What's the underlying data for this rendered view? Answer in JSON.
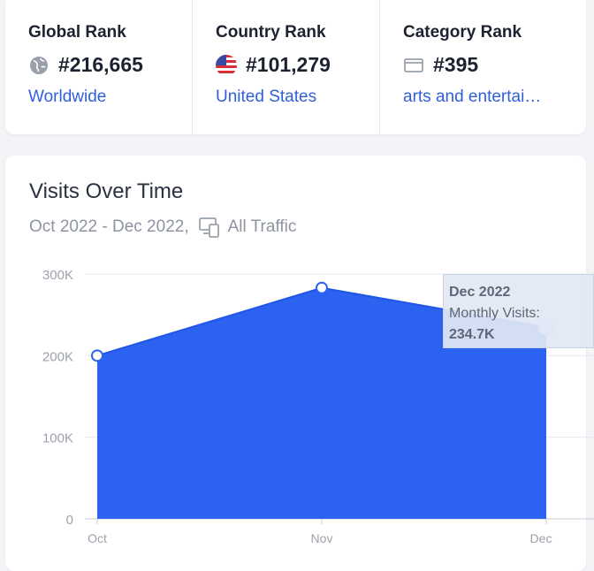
{
  "ranks": {
    "global": {
      "title": "Global Rank",
      "value": "#216,665",
      "link": "Worldwide",
      "icon": "globe-icon"
    },
    "country": {
      "title": "Country Rank",
      "value": "#101,279",
      "link": "United States",
      "icon": "us-flag-icon"
    },
    "category": {
      "title": "Category Rank",
      "value": "#395",
      "link": "arts and entertai…",
      "icon": "category-icon"
    }
  },
  "visits": {
    "title": "Visits Over Time",
    "date_range": "Oct 2022 - Dec 2022,",
    "traffic": "All Traffic",
    "traffic_icon": "devices-icon"
  },
  "tooltip": {
    "date": "Dec 2022",
    "label": "Monthly Visits:",
    "value": "234.7K"
  },
  "colors": {
    "accent": "#2b62f0",
    "link": "#2f5fdb",
    "text": "#1c2230",
    "muted": "#8d93a0"
  },
  "chart_data": {
    "type": "area",
    "categories": [
      "Oct",
      "Nov",
      "Dec"
    ],
    "values": [
      200000,
      283000,
      234700
    ],
    "y_ticks": [
      "0",
      "100K",
      "200K",
      "300K"
    ],
    "ylim": [
      0,
      300000
    ],
    "grid": true
  }
}
